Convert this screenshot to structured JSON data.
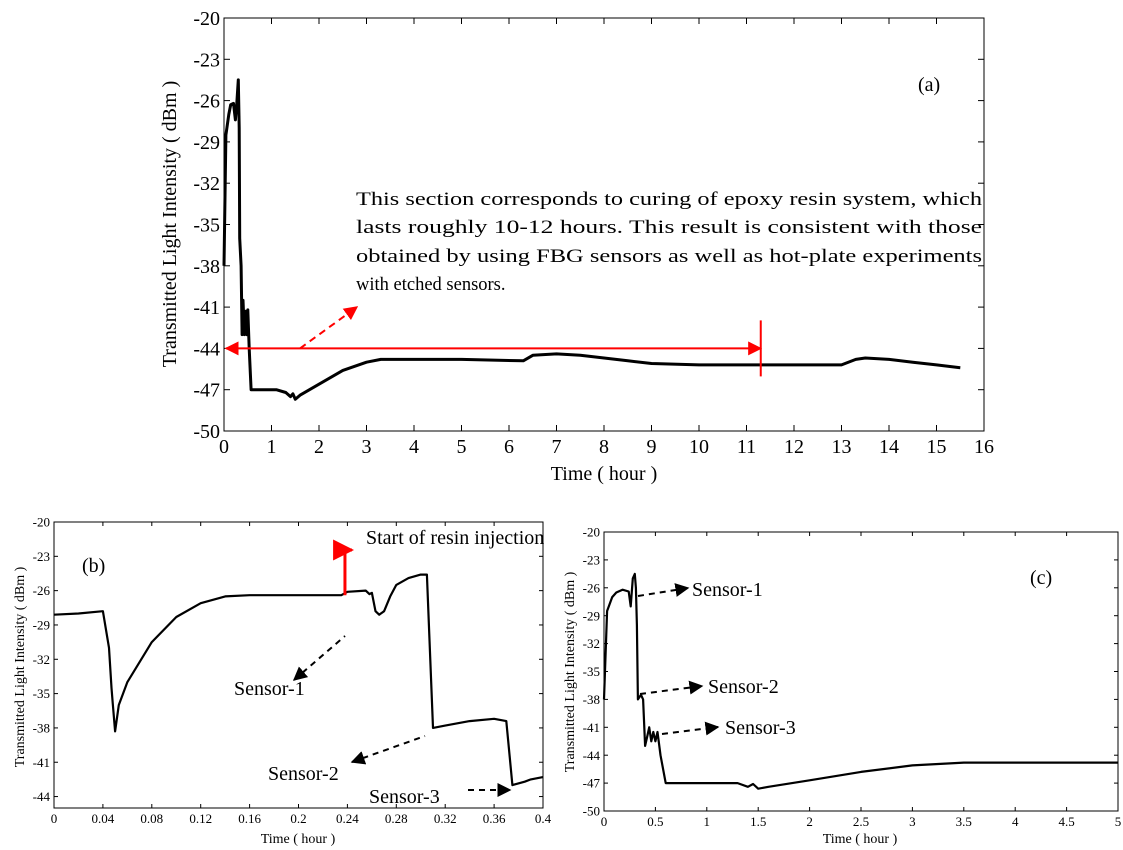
{
  "chart_data": [
    {
      "panel": "(a)",
      "type": "line",
      "xlabel": "Time ( hour )",
      "ylabel": "Transmitted Light Intensity ( dBm )",
      "xlim": [
        0,
        16
      ],
      "ylim": [
        -50,
        -20
      ],
      "xticks": [
        0,
        1,
        2,
        3,
        4,
        5,
        6,
        7,
        8,
        9,
        10,
        11,
        12,
        13,
        14,
        15,
        16
      ],
      "yticks": [
        -20,
        -23,
        -26,
        -29,
        -32,
        -35,
        -38,
        -41,
        -44,
        -47,
        -50
      ],
      "grid": false,
      "series": [
        {
          "points": [
            [
              0,
              -38
            ],
            [
              0.04,
              -28.5
            ],
            [
              0.1,
              -27
            ],
            [
              0.14,
              -26.3
            ],
            [
              0.2,
              -26.2
            ],
            [
              0.24,
              -27.4
            ],
            [
              0.27,
              -26.2
            ],
            [
              0.3,
              -24.5
            ],
            [
              0.32,
              -28
            ],
            [
              0.33,
              -36
            ],
            [
              0.36,
              -38
            ],
            [
              0.38,
              -43
            ],
            [
              0.4,
              -40.5
            ],
            [
              0.43,
              -43
            ],
            [
              0.45,
              -41.3
            ],
            [
              0.48,
              -43
            ],
            [
              0.5,
              -41.2
            ],
            [
              0.53,
              -44
            ],
            [
              0.57,
              -47
            ],
            [
              0.8,
              -47
            ],
            [
              1.1,
              -47
            ],
            [
              1.3,
              -47.2
            ],
            [
              1.4,
              -47.5
            ],
            [
              1.45,
              -47.3
            ],
            [
              1.5,
              -47.7
            ],
            [
              1.6,
              -47.4
            ],
            [
              2,
              -46.6
            ],
            [
              2.5,
              -45.6
            ],
            [
              3,
              -45
            ],
            [
              3.3,
              -44.8
            ],
            [
              4,
              -44.8
            ],
            [
              5,
              -44.8
            ],
            [
              6.3,
              -44.9
            ],
            [
              6.5,
              -44.5
            ],
            [
              7,
              -44.4
            ],
            [
              7.5,
              -44.5
            ],
            [
              8.5,
              -44.9
            ],
            [
              9,
              -45.1
            ],
            [
              10,
              -45.2
            ],
            [
              11,
              -45.2
            ],
            [
              12,
              -45.2
            ],
            [
              13,
              -45.2
            ],
            [
              13.3,
              -44.8
            ],
            [
              13.5,
              -44.7
            ],
            [
              14,
              -44.8
            ],
            [
              14.5,
              -45
            ],
            [
              15,
              -45.2
            ],
            [
              15.5,
              -45.4
            ]
          ]
        }
      ],
      "annotations": {
        "label": "(a)",
        "note_lines": [
          "This section corresponds to curing of epoxy resin system, which",
          "lasts roughly 10-12 hours. This result is consistent with those",
          "obtained by using FBG sensors as well as hot-plate experiments",
          "with etched sensors."
        ],
        "span_start_x": 0,
        "span_end_x": 11.3,
        "span_y": -44
      }
    },
    {
      "panel": "(b)",
      "type": "line",
      "xlabel": "Time ( hour )",
      "ylabel": "Transmitted Light Intensity ( dBm )",
      "xlim": [
        0,
        0.4
      ],
      "ylim": [
        -45,
        -20
      ],
      "xticks": [
        "0",
        "0.04",
        "0.08",
        "0.12",
        "0.16",
        "0.2",
        "0.24",
        "0.28",
        "0.32",
        "0.36",
        "0.4"
      ],
      "yticks": [
        -20,
        -23,
        -26,
        -29,
        -32,
        -35,
        -38,
        -41,
        -44
      ],
      "grid": false,
      "series": [
        {
          "points": [
            [
              0,
              -28.1
            ],
            [
              0.02,
              -28
            ],
            [
              0.04,
              -27.8
            ],
            [
              0.045,
              -31
            ],
            [
              0.047,
              -34.5
            ],
            [
              0.048,
              -35.8
            ],
            [
              0.05,
              -38.3
            ],
            [
              0.053,
              -36
            ],
            [
              0.06,
              -34
            ],
            [
              0.08,
              -30.5
            ],
            [
              0.1,
              -28.3
            ],
            [
              0.12,
              -27.1
            ],
            [
              0.14,
              -26.5
            ],
            [
              0.16,
              -26.4
            ],
            [
              0.2,
              -26.4
            ],
            [
              0.235,
              -26.4
            ],
            [
              0.24,
              -26.1
            ],
            [
              0.255,
              -26
            ],
            [
              0.258,
              -26.3
            ],
            [
              0.26,
              -26.2
            ],
            [
              0.263,
              -27.8
            ],
            [
              0.266,
              -28.1
            ],
            [
              0.27,
              -27.8
            ],
            [
              0.275,
              -26.5
            ],
            [
              0.28,
              -25.5
            ],
            [
              0.29,
              -24.9
            ],
            [
              0.3,
              -24.6
            ],
            [
              0.305,
              -24.6
            ],
            [
              0.31,
              -38
            ],
            [
              0.32,
              -37.8
            ],
            [
              0.34,
              -37.4
            ],
            [
              0.36,
              -37.2
            ],
            [
              0.37,
              -37.4
            ],
            [
              0.375,
              -43
            ],
            [
              0.385,
              -42.7
            ],
            [
              0.39,
              -42.5
            ],
            [
              0.4,
              -42.3
            ]
          ]
        }
      ],
      "annotations": {
        "label": "(b)",
        "injection_label": "Start of resin injection",
        "injection_x": 0.238,
        "sensor_labels": [
          "Sensor-1",
          "Sensor-2",
          "Sensor-3"
        ]
      }
    },
    {
      "panel": "(c)",
      "type": "line",
      "xlabel": "Time ( hour )",
      "ylabel": "Transmitted Light Intensity ( dBm )",
      "xlim": [
        0,
        5
      ],
      "ylim": [
        -50,
        -20
      ],
      "xticks": [
        "0",
        "0.5",
        "1",
        "1.5",
        "2",
        "2.5",
        "3",
        "3.5",
        "4",
        "4.5",
        "5"
      ],
      "yticks": [
        -20,
        -23,
        -26,
        -29,
        -32,
        -35,
        -38,
        -41,
        -44,
        -47,
        -50
      ],
      "grid": false,
      "series": [
        {
          "points": [
            [
              0,
              -38
            ],
            [
              0.03,
              -28.5
            ],
            [
              0.08,
              -27
            ],
            [
              0.12,
              -26.5
            ],
            [
              0.18,
              -26.2
            ],
            [
              0.24,
              -26.4
            ],
            [
              0.26,
              -28
            ],
            [
              0.28,
              -25
            ],
            [
              0.3,
              -24.5
            ],
            [
              0.31,
              -26
            ],
            [
              0.32,
              -30
            ],
            [
              0.33,
              -38
            ],
            [
              0.36,
              -37.5
            ],
            [
              0.38,
              -38
            ],
            [
              0.4,
              -43
            ],
            [
              0.42,
              -42
            ],
            [
              0.44,
              -41
            ],
            [
              0.46,
              -42.5
            ],
            [
              0.48,
              -41.5
            ],
            [
              0.5,
              -42.5
            ],
            [
              0.52,
              -41.5
            ],
            [
              0.55,
              -44
            ],
            [
              0.6,
              -47
            ],
            [
              0.8,
              -47
            ],
            [
              1.1,
              -47
            ],
            [
              1.3,
              -47
            ],
            [
              1.4,
              -47.4
            ],
            [
              1.45,
              -47.1
            ],
            [
              1.5,
              -47.6
            ],
            [
              1.6,
              -47.4
            ],
            [
              2,
              -46.7
            ],
            [
              2.5,
              -45.8
            ],
            [
              3,
              -45.1
            ],
            [
              3.5,
              -44.8
            ],
            [
              4,
              -44.8
            ],
            [
              5,
              -44.8
            ]
          ]
        }
      ],
      "annotations": {
        "label": "(c)",
        "sensor_labels": [
          "Sensor-1",
          "Sensor-2",
          "Sensor-3"
        ]
      }
    }
  ],
  "colors": {
    "line": "#000000",
    "annotation_red": "#ff0000",
    "frame": "#000000"
  }
}
